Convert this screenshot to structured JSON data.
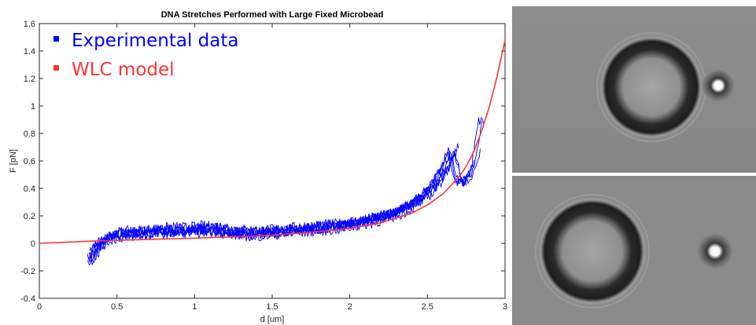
{
  "chart_data": {
    "type": "line",
    "title": "DNA Stretches Performed with Large Fixed Microbead",
    "xlabel": "d [um]",
    "ylabel": "F [pN]",
    "xlim": [
      0,
      3
    ],
    "ylim": [
      -0.4,
      1.6
    ],
    "xticks": [
      "0",
      "0.5",
      "1",
      "1.5",
      "2",
      "2.5",
      "3"
    ],
    "yticks": [
      "-0.4",
      "-0.2",
      "0",
      "0.2",
      "0.4",
      "0.6",
      "0.8",
      "1",
      "1.2",
      "1.4",
      "1.6"
    ],
    "grid": false,
    "legend_position": "top-left",
    "series": [
      {
        "name": "Experimental data",
        "color": "#0000ff",
        "x": [
          0.3,
          0.35,
          0.4,
          0.45,
          0.5,
          0.6,
          0.7,
          0.8,
          0.9,
          1.0,
          1.1,
          1.2,
          1.3,
          1.4,
          1.5,
          1.6,
          1.7,
          1.8,
          1.9,
          2.0,
          2.1,
          2.2,
          2.3,
          2.4,
          2.5,
          2.55,
          2.6,
          2.65,
          2.7,
          2.75,
          2.8,
          2.85
        ],
        "y": [
          -0.12,
          -0.05,
          0.02,
          0.05,
          0.06,
          0.07,
          0.08,
          0.09,
          0.09,
          0.1,
          0.1,
          0.08,
          0.07,
          0.07,
          0.08,
          0.09,
          0.1,
          0.11,
          0.12,
          0.14,
          0.16,
          0.19,
          0.23,
          0.29,
          0.38,
          0.45,
          0.55,
          0.68,
          0.45,
          0.45,
          0.55,
          0.9
        ]
      },
      {
        "name": "WLC model",
        "color": "#ff3333",
        "x": [
          0,
          0.3,
          0.6,
          0.9,
          1.2,
          1.5,
          1.8,
          2.0,
          2.2,
          2.4,
          2.5,
          2.6,
          2.7,
          2.75,
          2.8,
          2.85,
          2.9,
          2.95,
          3.0
        ],
        "y": [
          0.0,
          0.015,
          0.025,
          0.035,
          0.045,
          0.06,
          0.085,
          0.11,
          0.15,
          0.22,
          0.28,
          0.36,
          0.48,
          0.56,
          0.67,
          0.82,
          1.0,
          1.22,
          1.48
        ]
      }
    ]
  },
  "colors": {
    "experimental": "#0000ff",
    "model": "#ff3333",
    "image_background": "#8c8c8c"
  }
}
